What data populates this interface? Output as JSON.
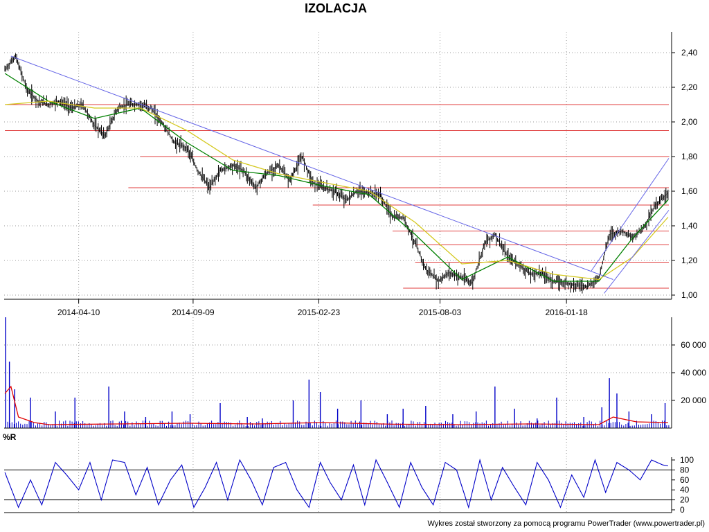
{
  "title": "IZOLACJA",
  "footer": "Wykres został stworzony za pomocą programu PowerTrader (www.powertrader.pl)",
  "indicator_label": "%R",
  "colors": {
    "price_bars": "#000000",
    "ma_fast": "#008000",
    "ma_slow": "#d4c81e",
    "trendline": "#6464e6",
    "support_resistance": "#e03c3c",
    "volume_bars": "#0000c8",
    "volume_avg": "#e00000",
    "williams_r": "#0000c8",
    "grid": "#999999"
  },
  "chart_data": [
    {
      "type": "line",
      "panel": "price",
      "title": "IZOLACJA",
      "x_ticks": [
        "2014-04-10",
        "2014-09-09",
        "2015-02-23",
        "2015-08-03",
        "2016-01-18"
      ],
      "x_range": [
        "2014-01-01",
        "2016-06-02"
      ],
      "y_ticks": [
        "1,00",
        "1,20",
        "1,40",
        "1,60",
        "1,80",
        "2,00",
        "2,20",
        "2,40"
      ],
      "ylim": [
        1.0,
        2.52
      ],
      "grid": true,
      "series": [
        {
          "kind": "close",
          "x": [
            "2014-01-02",
            "2014-01-16",
            "2014-02-01",
            "2014-02-15",
            "2014-03-01",
            "2014-03-15",
            "2014-04-01",
            "2014-04-15",
            "2014-05-01",
            "2014-05-15",
            "2014-06-01",
            "2014-06-15",
            "2014-07-01",
            "2014-07-15",
            "2014-08-01",
            "2014-08-15",
            "2014-09-01",
            "2014-09-15",
            "2014-10-01",
            "2014-10-15",
            "2014-11-01",
            "2014-11-15",
            "2014-12-01",
            "2014-12-15",
            "2015-01-01",
            "2015-01-15",
            "2015-02-01",
            "2015-02-15",
            "2015-03-01",
            "2015-03-15",
            "2015-04-01",
            "2015-04-15",
            "2015-05-01",
            "2015-05-15",
            "2015-06-01",
            "2015-06-15",
            "2015-07-01",
            "2015-07-15",
            "2015-08-01",
            "2015-08-15",
            "2015-09-01",
            "2015-09-15",
            "2015-10-01",
            "2015-10-15",
            "2015-11-01",
            "2015-11-15",
            "2015-12-01",
            "2015-12-15",
            "2016-01-01",
            "2016-01-15",
            "2016-02-01",
            "2016-02-15",
            "2016-03-01",
            "2016-03-15",
            "2016-04-01",
            "2016-04-15",
            "2016-05-01",
            "2016-05-15",
            "2016-06-01"
          ],
          "values": [
            2.3,
            2.38,
            2.18,
            2.12,
            2.1,
            2.12,
            2.08,
            2.1,
            1.98,
            1.92,
            2.08,
            2.1,
            2.1,
            2.08,
            1.98,
            1.88,
            1.85,
            1.72,
            1.62,
            1.72,
            1.75,
            1.72,
            1.62,
            1.7,
            1.75,
            1.66,
            1.8,
            1.65,
            1.62,
            1.6,
            1.55,
            1.6,
            1.59,
            1.58,
            1.45,
            1.45,
            1.3,
            1.15,
            1.08,
            1.13,
            1.1,
            1.07,
            1.3,
            1.35,
            1.22,
            1.18,
            1.12,
            1.13,
            1.08,
            1.07,
            1.06,
            1.05,
            1.1,
            1.35,
            1.37,
            1.33,
            1.4,
            1.52,
            1.59
          ]
        },
        {
          "kind": "ma_fast",
          "x": [
            "2014-01-02",
            "2014-03-01",
            "2014-05-01",
            "2014-07-01",
            "2014-09-01",
            "2014-11-01",
            "2015-01-01",
            "2015-03-01",
            "2015-05-01",
            "2015-07-01",
            "2015-09-01",
            "2015-11-01",
            "2016-01-01",
            "2016-03-01",
            "2016-04-15",
            "2016-06-01"
          ],
          "values": [
            2.28,
            2.12,
            2.02,
            2.08,
            1.88,
            1.72,
            1.69,
            1.63,
            1.58,
            1.35,
            1.09,
            1.22,
            1.08,
            1.08,
            1.33,
            1.55
          ]
        },
        {
          "kind": "ma_slow",
          "x": [
            "2014-01-02",
            "2014-03-01",
            "2014-05-01",
            "2014-07-01",
            "2014-09-01",
            "2014-11-01",
            "2015-01-01",
            "2015-03-01",
            "2015-05-01",
            "2015-07-01",
            "2015-09-01",
            "2015-11-01",
            "2016-01-01",
            "2016-03-01",
            "2016-04-15",
            "2016-06-01"
          ],
          "values": [
            2.1,
            2.12,
            2.08,
            2.08,
            1.95,
            1.78,
            1.7,
            1.65,
            1.6,
            1.42,
            1.18,
            1.2,
            1.12,
            1.09,
            1.22,
            1.45
          ]
        }
      ],
      "trendlines": [
        {
          "x": [
            "2014-01-10",
            "2016-03-20"
          ],
          "values": [
            2.38,
            1.09
          ]
        },
        {
          "x": [
            "2016-03-08",
            "2016-06-02"
          ],
          "values": [
            1.01,
            1.49
          ]
        },
        {
          "x": [
            "2016-02-20",
            "2016-06-02"
          ],
          "values": [
            1.14,
            1.79
          ]
        }
      ],
      "horizontal_levels": [
        {
          "value": 2.1,
          "from": "2014-01-02",
          "to": "2016-06-02"
        },
        {
          "value": 1.95,
          "from": "2014-01-02",
          "to": "2016-06-02"
        },
        {
          "value": 1.8,
          "from": "2014-07-01",
          "to": "2016-06-02"
        },
        {
          "value": 1.62,
          "from": "2014-06-15",
          "to": "2016-06-02"
        },
        {
          "value": 1.52,
          "from": "2015-02-15",
          "to": "2016-06-02"
        },
        {
          "value": 1.37,
          "from": "2015-06-01",
          "to": "2016-06-02"
        },
        {
          "value": 1.29,
          "from": "2015-07-01",
          "to": "2016-06-02"
        },
        {
          "value": 1.19,
          "from": "2015-07-01",
          "to": "2016-06-02"
        },
        {
          "value": 1.04,
          "from": "2015-06-15",
          "to": "2016-06-02"
        }
      ]
    },
    {
      "type": "bar",
      "panel": "volume",
      "y_ticks": [
        "20 000",
        "40 000",
        "60 000"
      ],
      "ylim": [
        0,
        80000
      ],
      "grid": true,
      "series": [
        {
          "kind": "volume",
          "x": [
            "2014-01-03",
            "2014-01-08",
            "2014-01-15",
            "2014-02-05",
            "2014-03-10",
            "2014-04-05",
            "2014-05-20",
            "2014-06-10",
            "2014-07-08",
            "2014-08-12",
            "2014-09-05",
            "2014-10-15",
            "2014-11-20",
            "2014-12-10",
            "2015-01-20",
            "2015-02-10",
            "2015-02-25",
            "2015-03-20",
            "2015-04-20",
            "2015-05-25",
            "2015-06-15",
            "2015-07-15",
            "2015-08-20",
            "2015-09-20",
            "2015-10-15",
            "2015-11-10",
            "2015-12-10",
            "2016-01-05",
            "2016-02-10",
            "2016-03-05",
            "2016-03-15",
            "2016-03-25",
            "2016-04-10",
            "2016-05-10",
            "2016-05-28"
          ],
          "values": [
            80000,
            48000,
            28000,
            22000,
            12000,
            22000,
            30000,
            12000,
            8000,
            12000,
            10000,
            18000,
            8000,
            7000,
            20000,
            35000,
            26000,
            14000,
            20000,
            10000,
            14000,
            16000,
            10000,
            12000,
            30000,
            14000,
            7000,
            22000,
            8000,
            15000,
            36000,
            25000,
            12000,
            10000,
            18000
          ]
        },
        {
          "kind": "volume_avg",
          "x": [
            "2014-01-02",
            "2014-01-10",
            "2014-01-20",
            "2014-02-10",
            "2014-03-01",
            "2014-06-01",
            "2014-09-01",
            "2014-12-01",
            "2015-03-01",
            "2015-06-01",
            "2015-09-01",
            "2015-12-01",
            "2016-03-01",
            "2016-03-20",
            "2016-04-20",
            "2016-06-01"
          ],
          "values": [
            25000,
            30000,
            8000,
            4000,
            2500,
            3000,
            3500,
            3000,
            4000,
            2800,
            2500,
            3000,
            2500,
            8000,
            4500,
            4000
          ]
        }
      ]
    },
    {
      "type": "line",
      "panel": "indicator",
      "title": "%R",
      "y_ticks": [
        "0",
        "20",
        "40",
        "60",
        "80",
        "100"
      ],
      "ylim": [
        0,
        100
      ],
      "reference_lines": [
        20,
        80
      ],
      "series": [
        {
          "kind": "williams_r",
          "x": [
            "2014-01-02",
            "2014-01-20",
            "2014-02-05",
            "2014-02-20",
            "2014-03-10",
            "2014-03-25",
            "2014-04-10",
            "2014-04-25",
            "2014-05-10",
            "2014-05-25",
            "2014-06-10",
            "2014-06-25",
            "2014-07-10",
            "2014-07-25",
            "2014-08-10",
            "2014-08-25",
            "2014-09-10",
            "2014-09-25",
            "2014-10-10",
            "2014-10-25",
            "2014-11-10",
            "2014-11-25",
            "2014-12-10",
            "2014-12-25",
            "2015-01-10",
            "2015-01-25",
            "2015-02-10",
            "2015-02-25",
            "2015-03-10",
            "2015-03-25",
            "2015-04-10",
            "2015-04-25",
            "2015-05-10",
            "2015-05-25",
            "2015-06-10",
            "2015-06-25",
            "2015-07-10",
            "2015-07-25",
            "2015-08-10",
            "2015-08-25",
            "2015-09-10",
            "2015-09-25",
            "2015-10-10",
            "2015-10-25",
            "2015-11-10",
            "2015-11-25",
            "2015-12-10",
            "2015-12-25",
            "2016-01-10",
            "2016-01-25",
            "2016-02-10",
            "2016-02-25",
            "2016-03-10",
            "2016-03-25",
            "2016-04-10",
            "2016-04-25",
            "2016-05-10",
            "2016-05-25",
            "2016-06-01"
          ],
          "values": [
            75,
            5,
            60,
            10,
            95,
            70,
            40,
            95,
            20,
            100,
            95,
            30,
            85,
            10,
            60,
            90,
            5,
            45,
            95,
            20,
            100,
            60,
            10,
            85,
            95,
            40,
            5,
            95,
            55,
            20,
            90,
            10,
            100,
            55,
            5,
            95,
            45,
            10,
            95,
            80,
            5,
            100,
            20,
            85,
            45,
            10,
            95,
            60,
            5,
            70,
            25,
            100,
            35,
            95,
            80,
            60,
            100,
            90,
            88
          ]
        }
      ]
    }
  ]
}
